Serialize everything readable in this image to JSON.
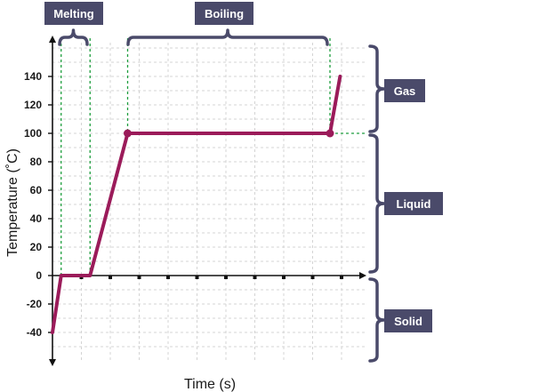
{
  "chart_data": {
    "type": "line",
    "xlabel": "Time (s)",
    "ylabel": "Temperature (˚C)",
    "ylim": [
      -60,
      160
    ],
    "y_ticks": [
      -40,
      -20,
      0,
      20,
      40,
      60,
      80,
      100,
      120,
      140
    ],
    "grid": true,
    "series": [
      {
        "x": [
          0,
          0.3,
          1.3,
          2.6,
          9.6,
          9.95
        ],
        "y": [
          -40,
          0,
          0,
          100,
          100,
          140
        ],
        "markers_at": [
          3,
          4
        ]
      }
    ],
    "annotations": {
      "melting": "Melting",
      "boiling": "Boiling",
      "gas": "Gas",
      "liquid": "Liquid",
      "solid": "Solid"
    },
    "colors": {
      "line": "#9b1b5a",
      "label_box": "#4a4a6a",
      "guide": "#1e9e3e",
      "grid": "#d4d4d4"
    }
  }
}
